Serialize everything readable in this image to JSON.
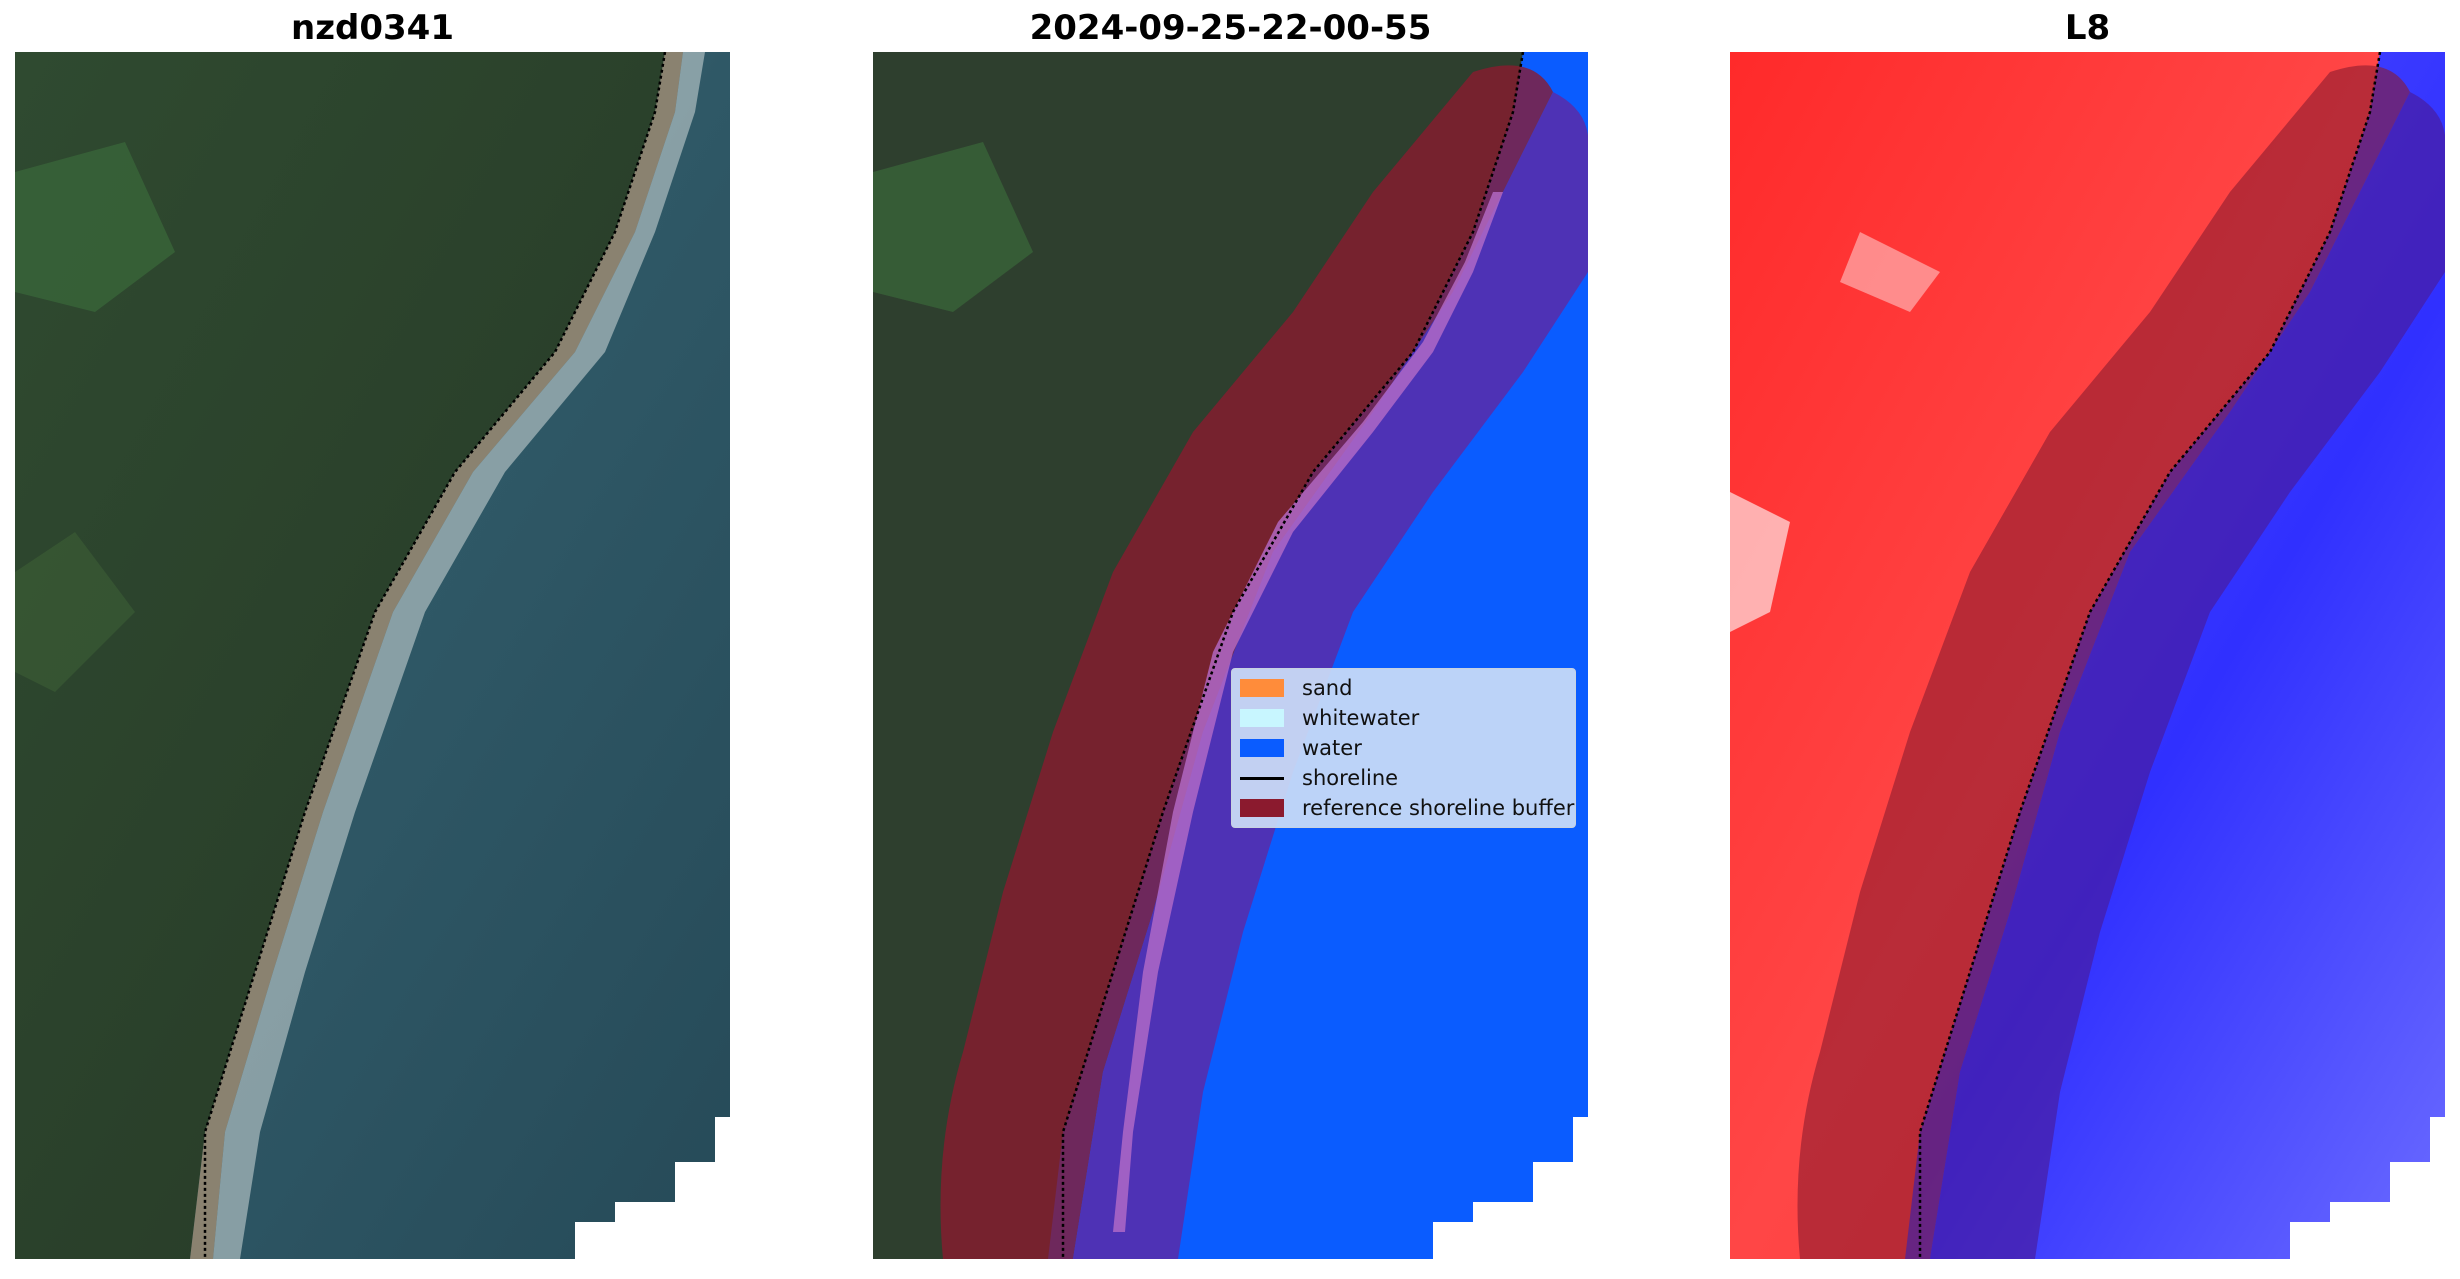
{
  "panels": [
    {
      "title": "nzd0341"
    },
    {
      "title": "2024-09-25-22-00-55"
    },
    {
      "title": "L8"
    }
  ],
  "legend": {
    "items": [
      {
        "label": "sand",
        "color": "#ff8c3a",
        "kind": "patch"
      },
      {
        "label": "whitewater",
        "color": "#c8f6ff",
        "kind": "patch"
      },
      {
        "label": "water",
        "color": "#0a5cff",
        "kind": "patch"
      },
      {
        "label": "shoreline",
        "color": "#000000",
        "kind": "line"
      },
      {
        "label": "reference shoreline buffer",
        "color": "#8b1a2e",
        "kind": "patch"
      }
    ]
  },
  "colors": {
    "water_class": "#0a5cff",
    "buffer": "#8b1a2e",
    "land": "#2e3f2e",
    "sea_rgb": "#2f5866",
    "ndwi_land": "#ff3030",
    "ndwi_water": "#2a2aff"
  }
}
